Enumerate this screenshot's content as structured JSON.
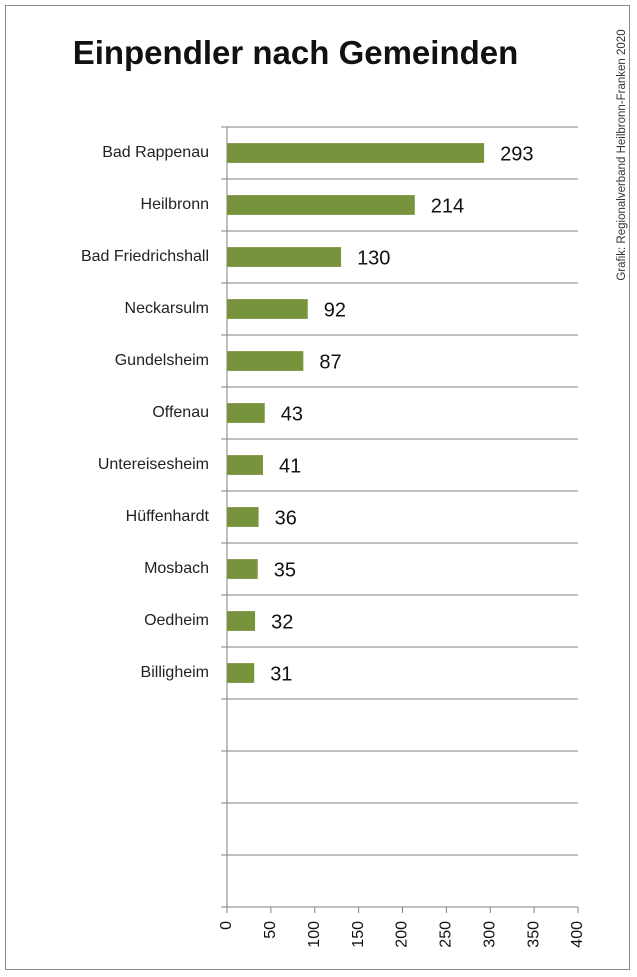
{
  "title": "Einpendler nach Gemeinden",
  "credit": "Grafik: Regionalverband Heilbronn-Franken 2020",
  "colors": {
    "bar": "#77933C",
    "grid": "#808080"
  },
  "chart_data": {
    "type": "bar",
    "orientation": "horizontal",
    "title": "Einpendler nach Gemeinden",
    "categories": [
      "Bad Rappenau",
      "Heilbronn",
      "Bad Friedrichshall",
      "Neckarsulm",
      "Gundelsheim",
      "Offenau",
      "Untereisesheim",
      "Hüffenhardt",
      "Mosbach",
      "Oedheim",
      "Billigheim",
      "",
      "",
      "",
      ""
    ],
    "values": [
      293,
      214,
      130,
      92,
      87,
      43,
      41,
      36,
      35,
      32,
      31,
      null,
      null,
      null,
      null
    ],
    "xlim": [
      0,
      400
    ],
    "xticks": [
      0,
      50,
      100,
      150,
      200,
      250,
      300,
      350,
      400
    ],
    "xlabel": "",
    "ylabel": "",
    "grid": true,
    "data_labels": true
  }
}
